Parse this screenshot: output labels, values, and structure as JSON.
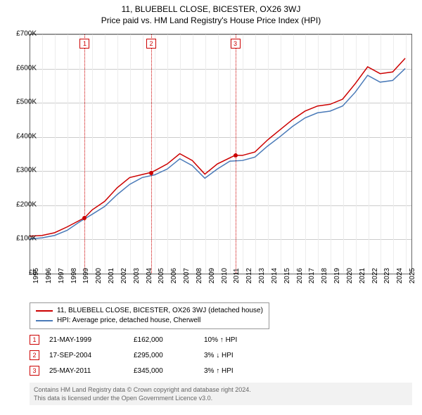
{
  "title": "11, BLUEBELL CLOSE, BICESTER, OX26 3WJ",
  "subtitle": "Price paid vs. HM Land Registry's House Price Index (HPI)",
  "chart": {
    "type": "line",
    "x_axis": {
      "min": 1995,
      "max": 2025.5,
      "ticks": [
        1995,
        1996,
        1997,
        1998,
        1999,
        2000,
        2001,
        2002,
        2003,
        2004,
        2005,
        2006,
        2007,
        2008,
        2009,
        2010,
        2011,
        2012,
        2013,
        2014,
        2015,
        2016,
        2017,
        2018,
        2019,
        2020,
        2021,
        2022,
        2023,
        2024,
        2025
      ]
    },
    "y_axis": {
      "min": 0,
      "max": 700000,
      "ticks": [
        0,
        100000,
        200000,
        300000,
        400000,
        500000,
        600000,
        700000
      ],
      "labels": [
        "£0",
        "£100K",
        "£200K",
        "£300K",
        "£400K",
        "£500K",
        "£600K",
        "£700K"
      ]
    },
    "colors": {
      "series_property": "#cc0000",
      "series_hpi": "#4a7ab8",
      "grid": "#cccccc",
      "background": "#ffffff",
      "marker_border": "#cc0000",
      "vline": "#cc0000"
    },
    "line_width": 1.5,
    "series": [
      {
        "name": "11, BLUEBELL CLOSE, BICESTER, OX26 3WJ (detached house)",
        "color": "#cc0000",
        "points": [
          [
            1995,
            108000
          ],
          [
            1996,
            110000
          ],
          [
            1997,
            118000
          ],
          [
            1998,
            135000
          ],
          [
            1999.4,
            162000
          ],
          [
            2000,
            185000
          ],
          [
            2001,
            210000
          ],
          [
            2002,
            250000
          ],
          [
            2003,
            280000
          ],
          [
            2004.7,
            295000
          ],
          [
            2005,
            300000
          ],
          [
            2006,
            320000
          ],
          [
            2007,
            350000
          ],
          [
            2008,
            330000
          ],
          [
            2009,
            290000
          ],
          [
            2010,
            320000
          ],
          [
            2011.4,
            345000
          ],
          [
            2012,
            345000
          ],
          [
            2013,
            355000
          ],
          [
            2014,
            390000
          ],
          [
            2015,
            420000
          ],
          [
            2016,
            450000
          ],
          [
            2017,
            475000
          ],
          [
            2018,
            490000
          ],
          [
            2019,
            495000
          ],
          [
            2020,
            510000
          ],
          [
            2021,
            555000
          ],
          [
            2022,
            605000
          ],
          [
            2023,
            585000
          ],
          [
            2024,
            590000
          ],
          [
            2025,
            630000
          ]
        ]
      },
      {
        "name": "HPI: Average price, detached house, Cherwell",
        "color": "#4a7ab8",
        "points": [
          [
            1995,
            100000
          ],
          [
            1996,
            103000
          ],
          [
            1997,
            110000
          ],
          [
            1998,
            125000
          ],
          [
            1999,
            150000
          ],
          [
            2000,
            172000
          ],
          [
            2001,
            195000
          ],
          [
            2002,
            230000
          ],
          [
            2003,
            260000
          ],
          [
            2004,
            280000
          ],
          [
            2005,
            288000
          ],
          [
            2006,
            305000
          ],
          [
            2007,
            335000
          ],
          [
            2008,
            315000
          ],
          [
            2009,
            278000
          ],
          [
            2010,
            305000
          ],
          [
            2011,
            328000
          ],
          [
            2012,
            330000
          ],
          [
            2013,
            340000
          ],
          [
            2014,
            372000
          ],
          [
            2015,
            400000
          ],
          [
            2016,
            430000
          ],
          [
            2017,
            455000
          ],
          [
            2018,
            470000
          ],
          [
            2019,
            475000
          ],
          [
            2020,
            490000
          ],
          [
            2021,
            530000
          ],
          [
            2022,
            580000
          ],
          [
            2023,
            560000
          ],
          [
            2024,
            565000
          ],
          [
            2025,
            600000
          ]
        ]
      }
    ],
    "markers": [
      {
        "id": "1",
        "x": 1999.4,
        "y": 162000
      },
      {
        "id": "2",
        "x": 2004.7,
        "y": 295000
      },
      {
        "id": "3",
        "x": 2011.4,
        "y": 345000
      }
    ]
  },
  "legend": {
    "items": [
      {
        "label": "11, BLUEBELL CLOSE, BICESTER, OX26 3WJ (detached house)",
        "color": "#cc0000"
      },
      {
        "label": "HPI: Average price, detached house, Cherwell",
        "color": "#4a7ab8"
      }
    ]
  },
  "events": [
    {
      "id": "1",
      "date": "21-MAY-1999",
      "price": "£162,000",
      "diff": "10% ↑ HPI"
    },
    {
      "id": "2",
      "date": "17-SEP-2004",
      "price": "£295,000",
      "diff": "3% ↓ HPI"
    },
    {
      "id": "3",
      "date": "25-MAY-2011",
      "price": "£345,000",
      "diff": "3% ↑ HPI"
    }
  ],
  "footer": {
    "line1": "Contains HM Land Registry data © Crown copyright and database right 2024.",
    "line2": "This data is licensed under the Open Government Licence v3.0."
  }
}
